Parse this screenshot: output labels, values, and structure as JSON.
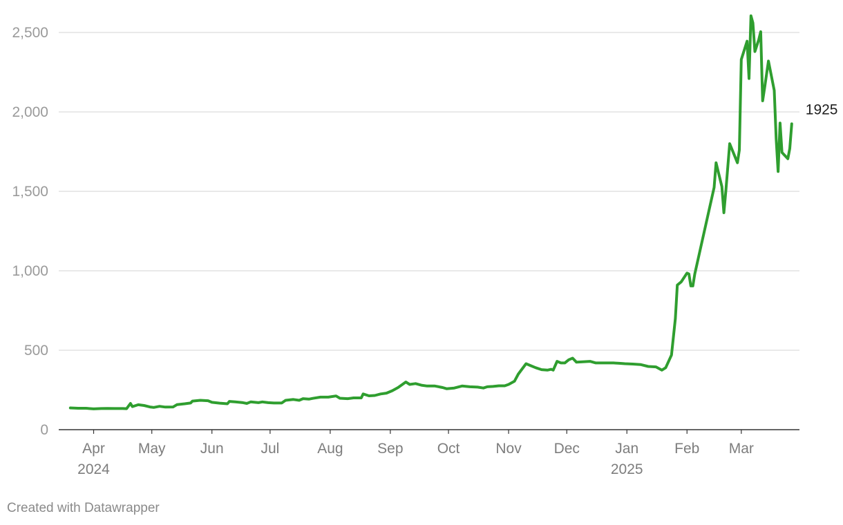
{
  "chart_data": {
    "type": "line",
    "title": "",
    "xlabel": "",
    "ylabel": "",
    "ylim": [
      0,
      2600
    ],
    "xlim": [
      "2024-03-14",
      "2025-03-31"
    ],
    "yticks": [
      0,
      500,
      1000,
      1500,
      2000,
      2500
    ],
    "ytick_labels": [
      "0",
      "500",
      "1,000",
      "1,500",
      "2,000",
      "2,500"
    ],
    "xticks": [
      {
        "date": "2024-04-01",
        "label": "Apr",
        "sublabel": "2024"
      },
      {
        "date": "2024-05-01",
        "label": "May",
        "sublabel": ""
      },
      {
        "date": "2024-06-01",
        "label": "Jun",
        "sublabel": ""
      },
      {
        "date": "2024-07-01",
        "label": "Jul",
        "sublabel": ""
      },
      {
        "date": "2024-08-01",
        "label": "Aug",
        "sublabel": ""
      },
      {
        "date": "2024-09-01",
        "label": "Sep",
        "sublabel": ""
      },
      {
        "date": "2024-10-01",
        "label": "Oct",
        "sublabel": ""
      },
      {
        "date": "2024-11-01",
        "label": "Nov",
        "sublabel": ""
      },
      {
        "date": "2024-12-01",
        "label": "Dec",
        "sublabel": ""
      },
      {
        "date": "2025-01-01",
        "label": "Jan",
        "sublabel": "2025"
      },
      {
        "date": "2025-02-01",
        "label": "Feb",
        "sublabel": ""
      },
      {
        "date": "2025-03-01",
        "label": "Mar",
        "sublabel": ""
      }
    ],
    "grid": true,
    "color": "#2f9e2f",
    "end_label": "1925",
    "series": [
      {
        "points": [
          [
            "2024-03-20",
            137
          ],
          [
            "2024-03-24",
            135
          ],
          [
            "2024-03-28",
            135
          ],
          [
            "2024-04-01",
            131
          ],
          [
            "2024-04-05",
            133
          ],
          [
            "2024-04-08",
            134
          ],
          [
            "2024-04-12",
            133
          ],
          [
            "2024-04-16",
            133
          ],
          [
            "2024-04-18",
            132
          ],
          [
            "2024-04-20",
            165
          ],
          [
            "2024-04-21",
            145
          ],
          [
            "2024-04-24",
            157
          ],
          [
            "2024-04-27",
            152
          ],
          [
            "2024-04-30",
            143
          ],
          [
            "2024-05-02",
            140
          ],
          [
            "2024-05-05",
            147
          ],
          [
            "2024-05-08",
            142
          ],
          [
            "2024-05-12",
            143
          ],
          [
            "2024-05-14",
            158
          ],
          [
            "2024-05-18",
            163
          ],
          [
            "2024-05-21",
            168
          ],
          [
            "2024-05-22",
            180
          ],
          [
            "2024-05-26",
            185
          ],
          [
            "2024-05-30",
            182
          ],
          [
            "2024-06-01",
            172
          ],
          [
            "2024-06-05",
            167
          ],
          [
            "2024-06-09",
            163
          ],
          [
            "2024-06-10",
            178
          ],
          [
            "2024-06-13",
            175
          ],
          [
            "2024-06-17",
            170
          ],
          [
            "2024-06-19",
            165
          ],
          [
            "2024-06-21",
            175
          ],
          [
            "2024-06-25",
            170
          ],
          [
            "2024-06-27",
            175
          ],
          [
            "2024-06-30",
            170
          ],
          [
            "2024-07-03",
            168
          ],
          [
            "2024-07-07",
            168
          ],
          [
            "2024-07-09",
            185
          ],
          [
            "2024-07-13",
            190
          ],
          [
            "2024-07-16",
            185
          ],
          [
            "2024-07-18",
            195
          ],
          [
            "2024-07-21",
            192
          ],
          [
            "2024-07-23",
            197
          ],
          [
            "2024-07-27",
            205
          ],
          [
            "2024-07-31",
            205
          ],
          [
            "2024-08-04",
            212
          ],
          [
            "2024-08-06",
            198
          ],
          [
            "2024-08-10",
            195
          ],
          [
            "2024-08-13",
            200
          ],
          [
            "2024-08-17",
            200
          ],
          [
            "2024-08-18",
            225
          ],
          [
            "2024-08-21",
            213
          ],
          [
            "2024-08-24",
            215
          ],
          [
            "2024-08-27",
            225
          ],
          [
            "2024-08-30",
            230
          ],
          [
            "2024-09-02",
            245
          ],
          [
            "2024-09-05",
            265
          ],
          [
            "2024-09-09",
            300
          ],
          [
            "2024-09-11",
            285
          ],
          [
            "2024-09-14",
            290
          ],
          [
            "2024-09-17",
            280
          ],
          [
            "2024-09-20",
            275
          ],
          [
            "2024-09-24",
            275
          ],
          [
            "2024-09-28",
            265
          ],
          [
            "2024-09-30",
            258
          ],
          [
            "2024-10-04",
            262
          ],
          [
            "2024-10-08",
            275
          ],
          [
            "2024-10-12",
            270
          ],
          [
            "2024-10-16",
            268
          ],
          [
            "2024-10-19",
            262
          ],
          [
            "2024-10-21",
            270
          ],
          [
            "2024-10-24",
            272
          ],
          [
            "2024-10-27",
            276
          ],
          [
            "2024-10-30",
            276
          ],
          [
            "2024-11-01",
            285
          ],
          [
            "2024-11-04",
            305
          ],
          [
            "2024-11-06",
            350
          ],
          [
            "2024-11-10",
            415
          ],
          [
            "2024-11-12",
            405
          ],
          [
            "2024-11-15",
            390
          ],
          [
            "2024-11-18",
            378
          ],
          [
            "2024-11-21",
            375
          ],
          [
            "2024-11-23",
            380
          ],
          [
            "2024-11-24",
            375
          ],
          [
            "2024-11-26",
            430
          ],
          [
            "2024-11-28",
            420
          ],
          [
            "2024-11-30",
            420
          ],
          [
            "2024-12-02",
            440
          ],
          [
            "2024-12-04",
            450
          ],
          [
            "2024-12-06",
            425
          ],
          [
            "2024-12-10",
            428
          ],
          [
            "2024-12-13",
            430
          ],
          [
            "2024-12-16",
            420
          ],
          [
            "2024-12-19",
            420
          ],
          [
            "2024-12-22",
            420
          ],
          [
            "2024-12-25",
            420
          ],
          [
            "2024-12-28",
            418
          ],
          [
            "2024-12-31",
            415
          ],
          [
            "2025-01-04",
            413
          ],
          [
            "2025-01-08",
            410
          ],
          [
            "2025-01-12",
            398
          ],
          [
            "2025-01-16",
            395
          ],
          [
            "2025-01-19",
            375
          ],
          [
            "2025-01-21",
            390
          ],
          [
            "2025-01-24",
            470
          ],
          [
            "2025-01-26",
            700
          ],
          [
            "2025-01-27",
            910
          ],
          [
            "2025-01-29",
            930
          ],
          [
            "2025-02-01",
            985
          ],
          [
            "2025-02-02",
            980
          ],
          [
            "2025-02-03",
            905
          ],
          [
            "2025-02-04",
            905
          ],
          [
            "2025-02-05",
            980
          ],
          [
            "2025-02-15",
            1525
          ],
          [
            "2025-02-16",
            1680
          ],
          [
            "2025-02-19",
            1530
          ],
          [
            "2025-02-20",
            1365
          ],
          [
            "2025-02-21",
            1500
          ],
          [
            "2025-02-23",
            1800
          ],
          [
            "2025-02-25",
            1740
          ],
          [
            "2025-02-27",
            1680
          ],
          [
            "2025-02-28",
            1760
          ],
          [
            "2025-03-01",
            2330
          ],
          [
            "2025-03-04",
            2445
          ],
          [
            "2025-03-05",
            2210
          ],
          [
            "2025-03-06",
            2605
          ],
          [
            "2025-03-07",
            2560
          ],
          [
            "2025-03-08",
            2380
          ],
          [
            "2025-03-10",
            2455
          ],
          [
            "2025-03-11",
            2505
          ],
          [
            "2025-03-12",
            2070
          ],
          [
            "2025-03-13",
            2150
          ],
          [
            "2025-03-15",
            2320
          ],
          [
            "2025-03-18",
            2135
          ],
          [
            "2025-03-19",
            1830
          ],
          [
            "2025-03-20",
            1625
          ],
          [
            "2025-03-21",
            1930
          ],
          [
            "2025-03-22",
            1745
          ],
          [
            "2025-03-25",
            1705
          ],
          [
            "2025-03-26",
            1770
          ],
          [
            "2025-03-27",
            1925
          ]
        ]
      }
    ]
  },
  "footer": {
    "credit": "Created with Datawrapper"
  }
}
